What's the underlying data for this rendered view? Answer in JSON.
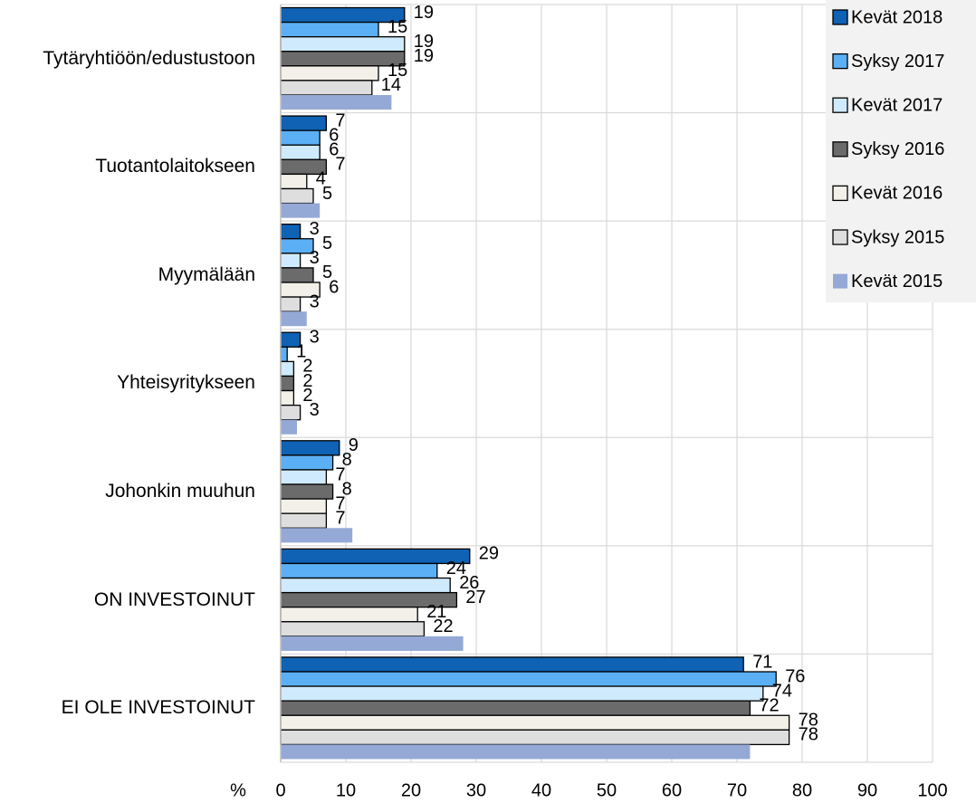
{
  "chart_data": {
    "type": "barh",
    "categories": [
      "Tytäryhtiöön/edustustoon",
      "Tuotantolaitokseen",
      "Myymälään",
      "Yhteisyritykseen",
      "Johonkin muuhun",
      "ON INVESTOINUT",
      "EI OLE INVESTOINUT"
    ],
    "series": [
      {
        "name": "Kevät 2018",
        "color": "#0f62b4",
        "values": [
          19,
          7,
          3,
          3,
          9,
          29,
          71
        ]
      },
      {
        "name": "Syksy 2017",
        "color": "#5bb0f5",
        "values": [
          15,
          6,
          5,
          1,
          8,
          24,
          76
        ]
      },
      {
        "name": "Kevät 2017",
        "color": "#cfeafc",
        "values": [
          19,
          6,
          3,
          2,
          7,
          26,
          74
        ]
      },
      {
        "name": "Syksy 2016",
        "color": "#6b6b6b",
        "values": [
          19,
          7,
          5,
          2,
          8,
          27,
          72
        ]
      },
      {
        "name": "Kevät 2016",
        "color": "#f2f0e8",
        "values": [
          15,
          4,
          6,
          2,
          7,
          21,
          78
        ]
      },
      {
        "name": "Syksy 2015",
        "color": "#dedede",
        "values": [
          14,
          5,
          3,
          3,
          7,
          22,
          78
        ]
      },
      {
        "name": "Kevät 2015",
        "color": "#95a9d6",
        "values": [
          17,
          6,
          4,
          2.5,
          11,
          28,
          72
        ],
        "show_labels": false,
        "border": false
      }
    ],
    "xlabel": "%",
    "xlim": [
      0,
      100
    ],
    "xticks": [
      0,
      10,
      20,
      30,
      40,
      50,
      60,
      70,
      80,
      90,
      100
    ],
    "grid": true,
    "legend": "top right"
  }
}
